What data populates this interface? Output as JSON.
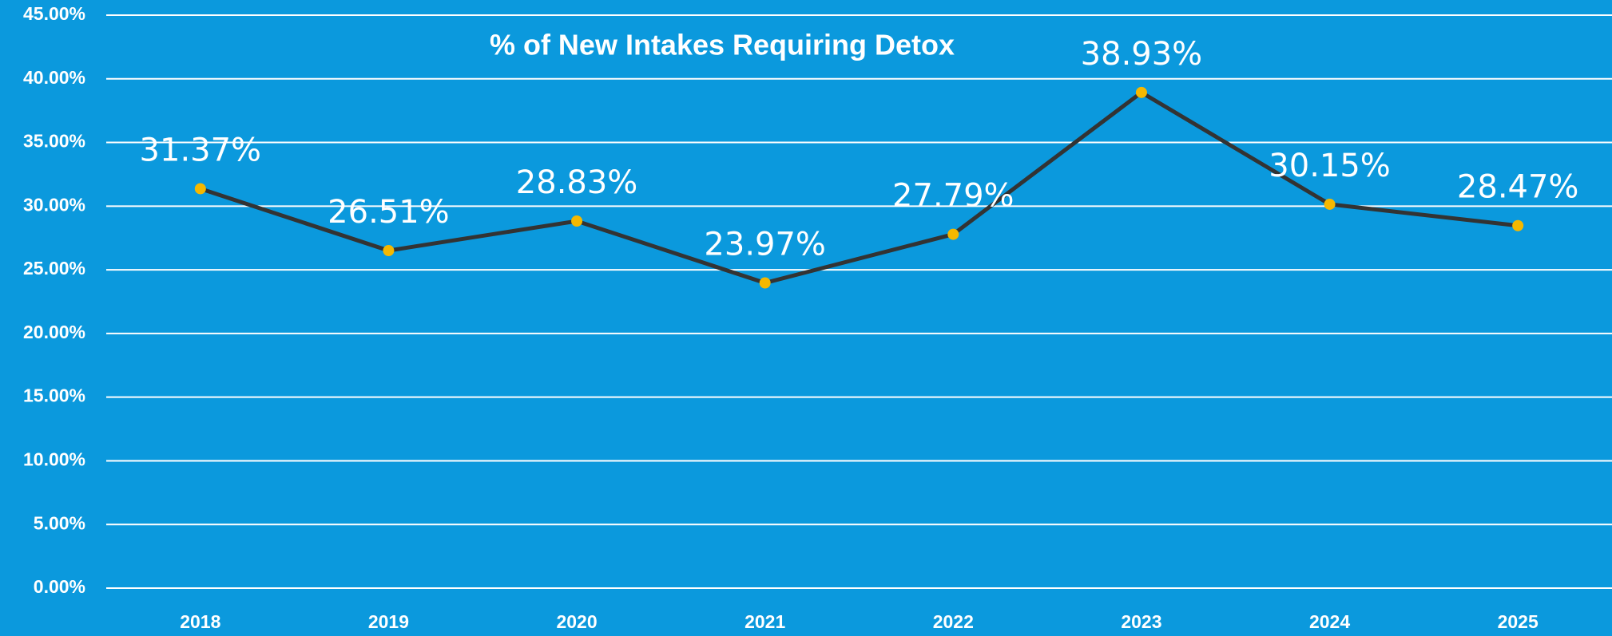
{
  "chart_data": {
    "type": "line",
    "title": "% of New Intakes Requiring Detox",
    "categories": [
      "2018",
      "2019",
      "2020",
      "2021",
      "2022",
      "2023",
      "2024",
      "2025"
    ],
    "series": [
      {
        "name": "% of New Intakes Requiring Detox",
        "color": "#333333",
        "marker_color": "#f5b800",
        "values": [
          31.37,
          26.51,
          28.83,
          23.97,
          27.79,
          38.93,
          30.15,
          28.47
        ],
        "value_labels": [
          "31.37%",
          "26.51%",
          "28.83%",
          "23.97%",
          "27.79%",
          "38.93%",
          "30.15%",
          "28.47%"
        ]
      }
    ],
    "ylim": [
      0,
      45
    ],
    "yticks": [
      {
        "value": 0,
        "label": "0.00%"
      },
      {
        "value": 5,
        "label": "5.00%"
      },
      {
        "value": 10,
        "label": "10.00%"
      },
      {
        "value": 15,
        "label": "15.00%"
      },
      {
        "value": 20,
        "label": "20.00%"
      },
      {
        "value": 25,
        "label": "25.00%"
      },
      {
        "value": 30,
        "label": "30.00%"
      },
      {
        "value": 35,
        "label": "35.00%"
      },
      {
        "value": 40,
        "label": "40.00%"
      },
      {
        "value": 45,
        "label": "45.00%"
      }
    ],
    "grid": true
  }
}
